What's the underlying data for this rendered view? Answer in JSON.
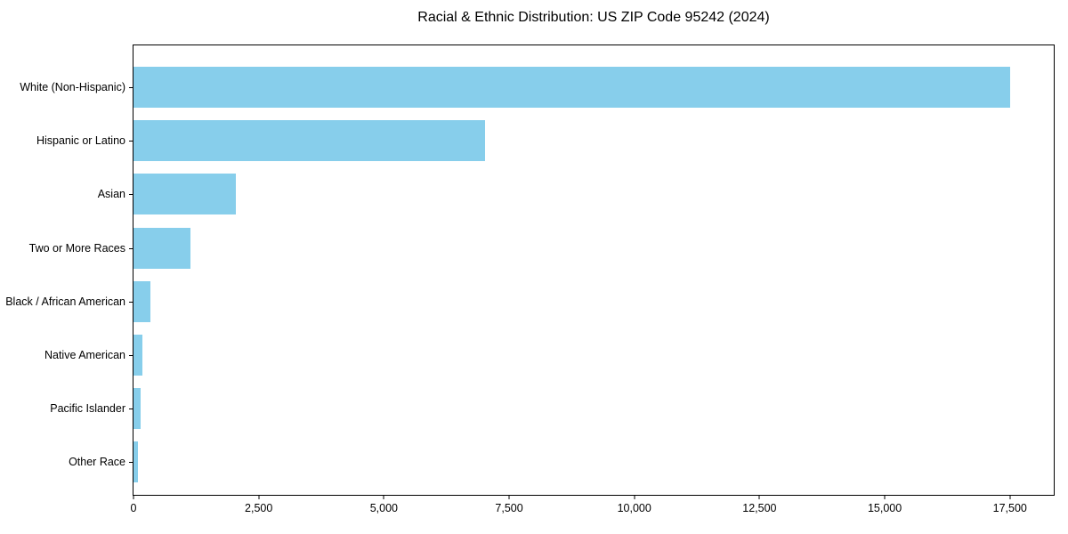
{
  "chart_data": {
    "type": "bar",
    "orientation": "horizontal",
    "title": "Racial & Ethnic Distribution: US ZIP Code 95242 (2024)",
    "categories": [
      "White (Non-Hispanic)",
      "Hispanic or Latino",
      "Asian",
      "Two or More Races",
      "Black / African American",
      "Native American",
      "Pacific Islander",
      "Other Race"
    ],
    "values": [
      17500,
      7020,
      2040,
      1140,
      340,
      170,
      150,
      90
    ],
    "xlabel": "",
    "ylabel": "",
    "xlim": [
      0,
      18375
    ],
    "xticks": [
      0,
      2500,
      5000,
      7500,
      10000,
      12500,
      15000,
      17500
    ],
    "xtick_labels": [
      "0",
      "2,500",
      "5,000",
      "7,500",
      "10,000",
      "12,500",
      "15,000",
      "17,500"
    ],
    "bar_color": "#87CEEB",
    "axis_color": "#000000",
    "background_color": "#ffffff",
    "grid": false,
    "legend": null
  }
}
